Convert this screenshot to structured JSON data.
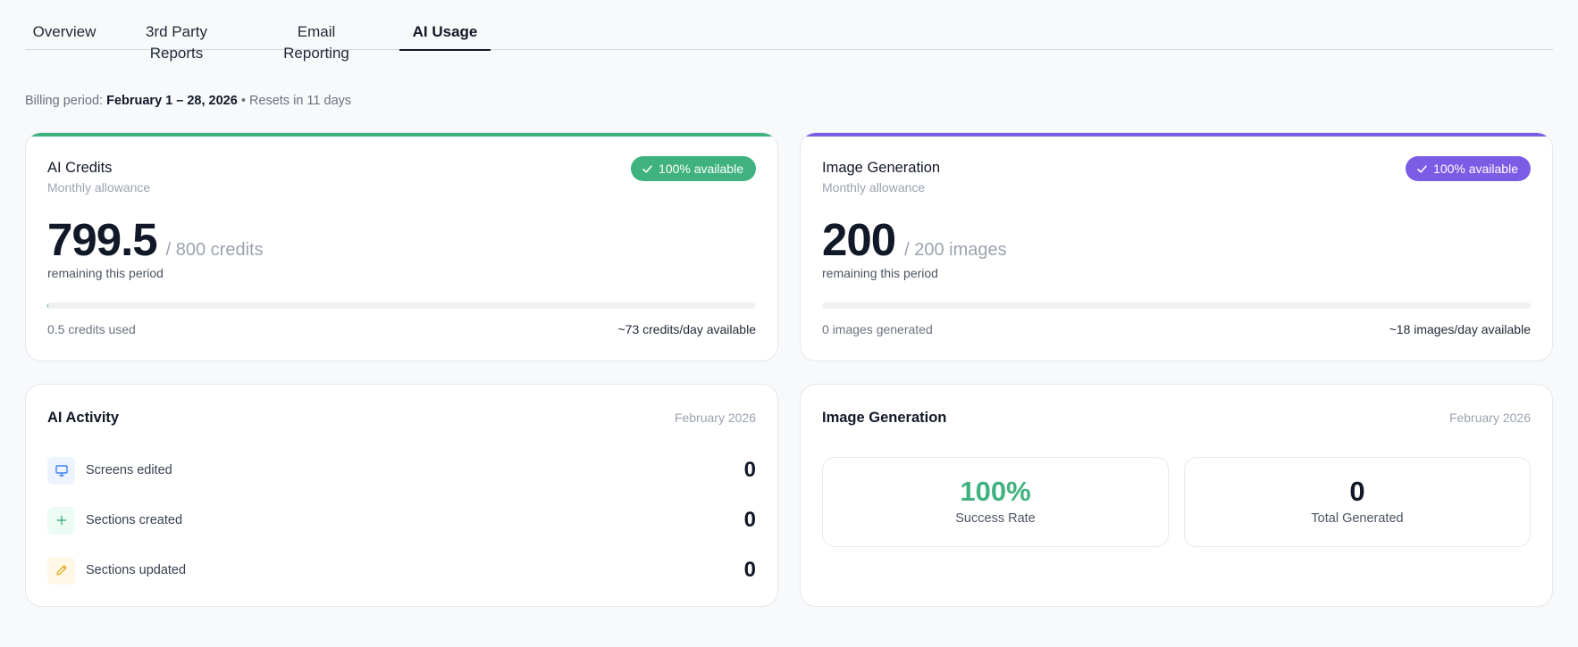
{
  "tabs": [
    {
      "label": "Overview",
      "active": false
    },
    {
      "label": "3rd Party Reports",
      "active": false
    },
    {
      "label": "Email Reporting",
      "active": false
    },
    {
      "label": "AI Usage",
      "active": true
    }
  ],
  "billing": {
    "prefix": "Billing period:",
    "period": "February 1 – 28, 2026",
    "separator": "•",
    "reset": "Resets in 11 days"
  },
  "ai_credits": {
    "title": "AI Credits",
    "subtitle": "Monthly allowance",
    "badge": "100% available",
    "value": "799.5",
    "unit": "/ 800 credits",
    "remaining": "remaining this period",
    "used_fraction": 0.000625,
    "used": "0.5 credits used",
    "rate": "~73 credits/day available",
    "accent": "#3fb27f"
  },
  "image_gen": {
    "title": "Image Generation",
    "subtitle": "Monthly allowance",
    "badge": "100% available",
    "value": "200",
    "unit": "/ 200 images",
    "remaining": "remaining this period",
    "used_fraction": 0,
    "used": "0 images generated",
    "rate": "~18 images/day available",
    "accent": "#7b5ce5"
  },
  "ai_activity": {
    "title": "AI Activity",
    "date": "February 2026",
    "items": [
      {
        "label": "Screens edited",
        "value": "0",
        "icon": "monitor-icon"
      },
      {
        "label": "Sections created",
        "value": "0",
        "icon": "plus-icon"
      },
      {
        "label": "Sections updated",
        "value": "0",
        "icon": "pencil-icon"
      }
    ]
  },
  "image_stats": {
    "title": "Image Generation",
    "date": "February 2026",
    "success_rate": {
      "value": "100%",
      "label": "Success Rate",
      "color": "#3fb27f"
    },
    "total": {
      "value": "0",
      "label": "Total Generated"
    }
  }
}
